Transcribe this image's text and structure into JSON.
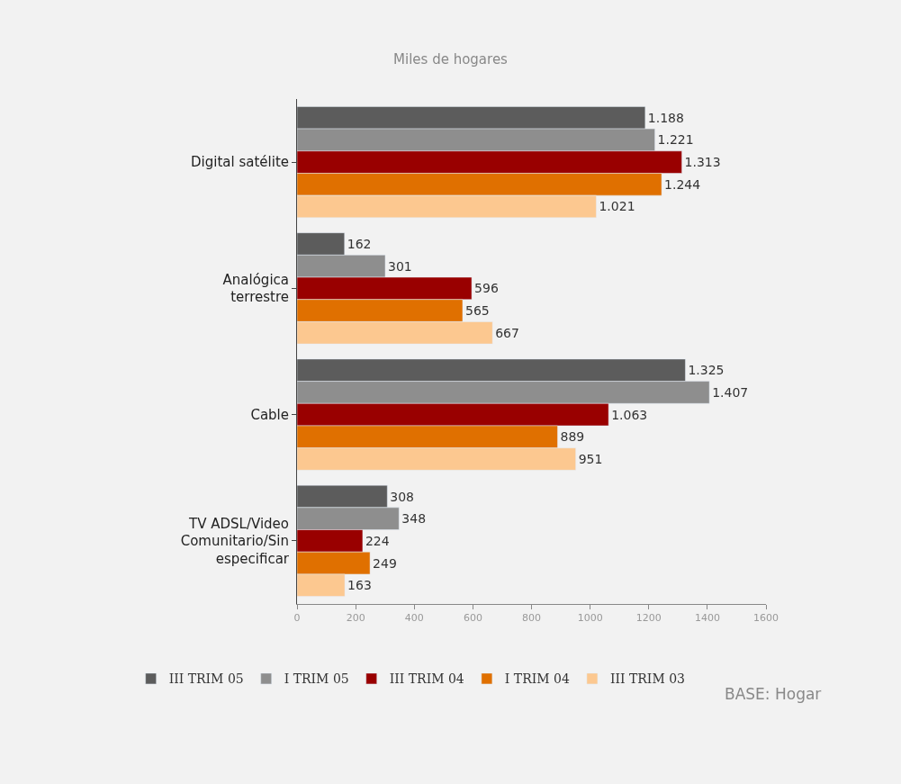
{
  "chart_data": {
    "type": "bar",
    "orientation": "horizontal",
    "title": "Miles de hogares",
    "categories": [
      "Digital satélite",
      "Analógica\nterrestre",
      "Cable",
      "TV ADSL/Video\nComunitario/Sin\nespecificar"
    ],
    "series": [
      {
        "name": "III TRIM 05",
        "color": "#5c5c5c",
        "values": [
          1188,
          162,
          1325,
          308
        ],
        "value_labels": [
          "1.188",
          "162",
          "1.325",
          "308"
        ]
      },
      {
        "name": "I TRIM 05",
        "color": "#8e8e8e",
        "values": [
          1221,
          301,
          1407,
          348
        ],
        "value_labels": [
          "1.221",
          "301",
          "1.407",
          "348"
        ]
      },
      {
        "name": "III TRIM 04",
        "color": "#990000",
        "values": [
          1313,
          596,
          1063,
          224
        ],
        "value_labels": [
          "1.313",
          "596",
          "1.063",
          "224"
        ]
      },
      {
        "name": "I TRIM 04",
        "color": "#e07000",
        "values": [
          1244,
          565,
          889,
          249
        ],
        "value_labels": [
          "1.244",
          "565",
          "889",
          "249"
        ]
      },
      {
        "name": "III TRIM 03",
        "color": "#fcc890",
        "values": [
          1021,
          667,
          951,
          163
        ],
        "value_labels": [
          "1.021",
          "667",
          "951",
          "163"
        ]
      }
    ],
    "xlim": [
      0,
      1600
    ],
    "xticks": [
      0,
      200,
      400,
      600,
      800,
      1000,
      1200,
      1400,
      1600
    ],
    "grid": false,
    "legend": "bottom left",
    "annotations": [
      "BASE: Hogar"
    ]
  }
}
